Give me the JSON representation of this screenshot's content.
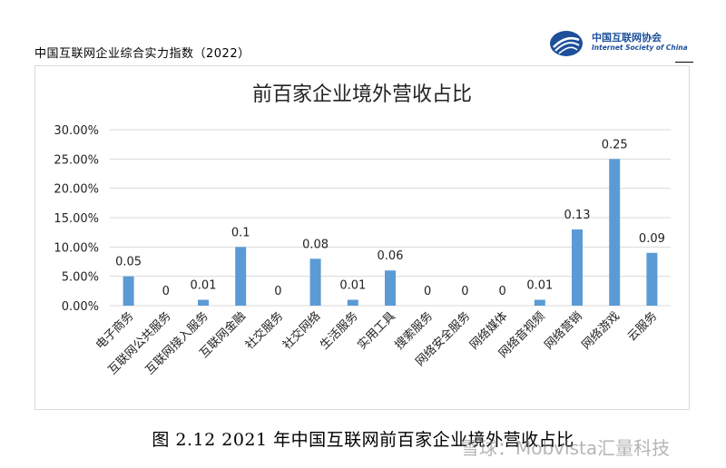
{
  "header": {
    "report_title": "中国互联网企业综合实力指数（2022）",
    "logo_cn": "中国互联网协会",
    "logo_en": "Internet Society of China"
  },
  "chart_data": {
    "type": "bar",
    "title": "前百家企业境外营收占比",
    "xlabel": "",
    "ylabel": "",
    "ylim": [
      0,
      0.3
    ],
    "yticks": [
      0,
      0.05,
      0.1,
      0.15,
      0.2,
      0.25,
      0.3
    ],
    "ytick_labels": [
      "0.00%",
      "5.00%",
      "10.00%",
      "15.00%",
      "20.00%",
      "25.00%",
      "30.00%"
    ],
    "categories": [
      "电子商务",
      "互联网公共服务",
      "互联网接入服务",
      "互联网金融",
      "社交服务",
      "社交网络",
      "生活服务",
      "实用工具",
      "搜索服务",
      "网络安全服务",
      "网络媒体",
      "网络音视频",
      "网络营销",
      "网络游戏",
      "云服务"
    ],
    "values": [
      0.05,
      0,
      0.01,
      0.1,
      0,
      0.08,
      0.01,
      0.06,
      0,
      0,
      0,
      0.01,
      0.13,
      0.25,
      0.09
    ],
    "data_labels": [
      "0.05",
      "0",
      "0.01",
      "0.1",
      "0",
      "0.08",
      "0.01",
      "0.06",
      "0",
      "0",
      "0",
      "0.01",
      "0.13",
      "0.25",
      "0.09"
    ],
    "grid": true,
    "legend": "none",
    "bar_color": "#5b9bd5",
    "grid_color": "#d9d9d9"
  },
  "caption": "图 2.12   2021 年中国互联网前百家企业境外营收占比",
  "watermark": "雪球：Mobvista汇量科技"
}
